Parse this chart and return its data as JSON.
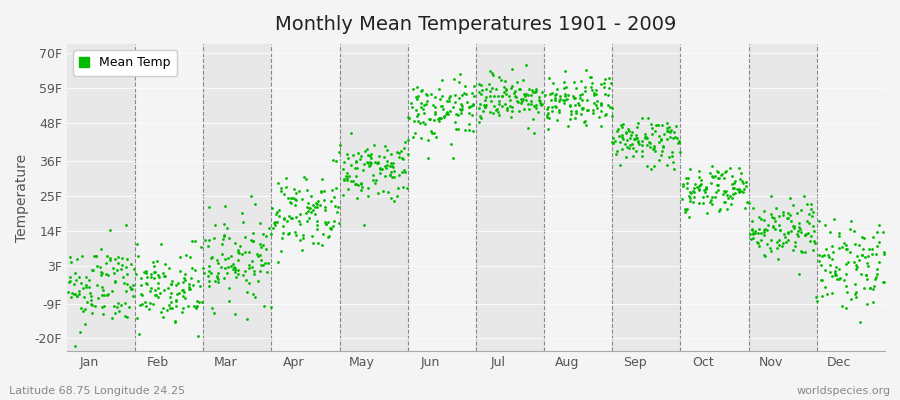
{
  "title": "Monthly Mean Temperatures 1901 - 2009",
  "ylabel": "Temperature",
  "xlabel_bottom_left": "Latitude 68.75 Longitude 24.25",
  "xlabel_bottom_right": "worldspecies.org",
  "legend_label": "Mean Temp",
  "dot_color": "#00bb00",
  "background_color": "#f4f4f4",
  "band_color_dark": "#e8e8e8",
  "band_color_light": "#f4f4f4",
  "ytick_labels": [
    "-20F",
    "-9F",
    "3F",
    "14F",
    "25F",
    "36F",
    "48F",
    "59F",
    "70F"
  ],
  "ytick_values": [
    -20,
    -9,
    3,
    14,
    25,
    36,
    48,
    59,
    70
  ],
  "ylim": [
    -24,
    73
  ],
  "months": [
    "Jan",
    "Feb",
    "Mar",
    "Apr",
    "May",
    "Jun",
    "Jul",
    "Aug",
    "Sep",
    "Oct",
    "Nov",
    "Dec"
  ],
  "xlim": [
    0,
    12
  ],
  "num_years": 109,
  "seed": 42,
  "mean_temps_f": [
    -4,
    -5,
    5,
    20,
    33,
    51,
    56,
    54,
    42,
    27,
    14,
    3
  ],
  "std_temps_f": [
    7,
    7,
    7,
    6,
    5,
    5,
    4,
    4,
    4,
    4,
    5,
    7
  ],
  "trend_per_year": [
    0.006,
    0.006,
    0.006,
    0.006,
    0.006,
    0.006,
    0.006,
    0.006,
    0.006,
    0.006,
    0.006,
    0.006
  ],
  "marker_size": 4,
  "dpi": 100,
  "figsize": [
    9.0,
    4.0
  ]
}
